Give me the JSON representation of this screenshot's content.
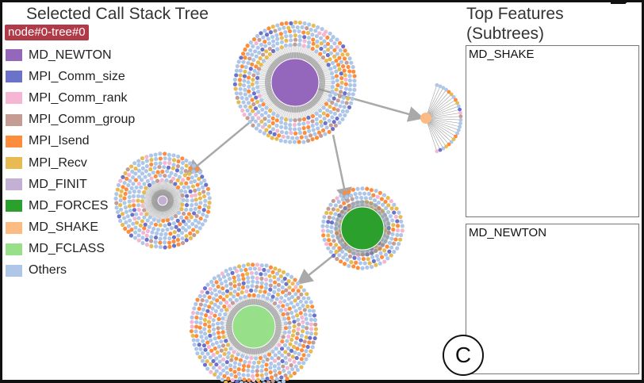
{
  "left_panel": {
    "title": "Selected Call Stack Tree",
    "node_tag": "node#0-tree#0"
  },
  "legend": {
    "items": [
      {
        "label": "MD_NEWTON",
        "color": "#9467bd"
      },
      {
        "label": "MPI_Comm_size",
        "color": "#6b72c9"
      },
      {
        "label": "MPI_Comm_rank",
        "color": "#f4b6d2"
      },
      {
        "label": "MPI_Comm_group",
        "color": "#c49c94"
      },
      {
        "label": "MPI_Isend",
        "color": "#fd8d3c"
      },
      {
        "label": "MPI_Recv",
        "color": "#e7ba52"
      },
      {
        "label": "MD_FINIT",
        "color": "#c5b0d5"
      },
      {
        "label": "MD_FORCES",
        "color": "#2ca02c"
      },
      {
        "label": "MD_SHAKE",
        "color": "#fdbb84"
      },
      {
        "label": "MD_FCLASS",
        "color": "#98df8a"
      },
      {
        "label": "Others",
        "color": "#aec7e8"
      }
    ]
  },
  "right_panel": {
    "title_line1": "Top Features",
    "title_line2": "(Subtrees)",
    "features": [
      {
        "label": "MD_SHAKE"
      },
      {
        "label": "MD_NEWTON"
      }
    ]
  },
  "badge": {
    "label": "C"
  },
  "colors": {
    "frame": "#111111",
    "edge": "#a9a9a9",
    "link": "#bdbdbd",
    "tag_bg": "#b03a48"
  }
}
